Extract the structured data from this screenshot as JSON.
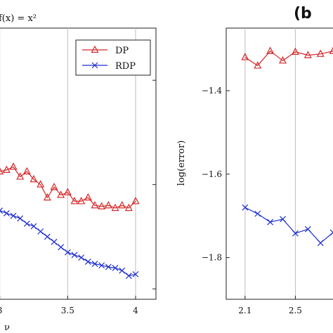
{
  "panels": {
    "left_title": "f(x) = x²",
    "right_tag": "(b"
  },
  "chart_data": [
    {
      "type": "line",
      "title": "f(x) = x²",
      "xlabel": "ν",
      "ylabel": "",
      "xlim": [
        2.95,
        4.15
      ],
      "ylim": [
        -1.82,
        -1.3
      ],
      "xticks": [
        3,
        3.5,
        4
      ],
      "xtick_labels": [
        "3",
        "3.5",
        "4"
      ],
      "yticks": [
        -1.4,
        -1.6,
        -1.8
      ],
      "grid": "vertical",
      "legend": "top-right",
      "series": [
        {
          "name": "DP",
          "color": "#d62728",
          "marker": "triangle",
          "x": [
            2.95,
            3.0,
            3.05,
            3.1,
            3.15,
            3.2,
            3.25,
            3.3,
            3.35,
            3.4,
            3.45,
            3.5,
            3.55,
            3.6,
            3.65,
            3.7,
            3.75,
            3.8,
            3.85,
            3.9,
            3.95,
            4.0
          ],
          "values": [
            -1.58,
            -1.575,
            -1.572,
            -1.566,
            -1.585,
            -1.575,
            -1.59,
            -1.6,
            -1.625,
            -1.605,
            -1.62,
            -1.615,
            -1.632,
            -1.632,
            -1.625,
            -1.64,
            -1.642,
            -1.64,
            -1.645,
            -1.64,
            -1.645,
            -1.632
          ]
        },
        {
          "name": "RDP",
          "color": "#1f2fd0",
          "marker": "cross",
          "x": [
            2.95,
            3.0,
            3.05,
            3.1,
            3.15,
            3.2,
            3.25,
            3.3,
            3.35,
            3.4,
            3.45,
            3.5,
            3.55,
            3.6,
            3.65,
            3.7,
            3.75,
            3.8,
            3.85,
            3.9,
            3.95,
            4.0
          ],
          "values": [
            -1.64,
            -1.65,
            -1.655,
            -1.66,
            -1.665,
            -1.675,
            -1.68,
            -1.69,
            -1.7,
            -1.71,
            -1.72,
            -1.73,
            -1.735,
            -1.74,
            -1.748,
            -1.752,
            -1.755,
            -1.758,
            -1.76,
            -1.765,
            -1.775,
            -1.772
          ]
        }
      ]
    },
    {
      "type": "line",
      "title": "",
      "xlabel": "",
      "ylabel": "log(error)",
      "xlim": [
        1.95,
        2.9
      ],
      "ylim": [
        -1.9,
        -1.25
      ],
      "xticks": [
        2.1,
        2.5
      ],
      "xtick_labels": [
        "2.1",
        "2.5"
      ],
      "yticks": [
        -1.4,
        -1.6,
        -1.8
      ],
      "ytick_labels": [
        "−1.4",
        "−1.6",
        "−1.8"
      ],
      "grid": "vertical",
      "series": [
        {
          "name": "DP",
          "color": "#d62728",
          "marker": "triangle",
          "x": [
            2.1,
            2.2,
            2.3,
            2.4,
            2.5,
            2.6,
            2.7,
            2.8
          ],
          "values": [
            -1.32,
            -1.34,
            -1.305,
            -1.328,
            -1.307,
            -1.315,
            -1.312,
            -1.305
          ]
        },
        {
          "name": "RDP",
          "color": "#1f2fd0",
          "marker": "cross",
          "x": [
            2.1,
            2.2,
            2.3,
            2.4,
            2.5,
            2.6,
            2.7,
            2.8
          ],
          "values": [
            -1.68,
            -1.695,
            -1.715,
            -1.708,
            -1.742,
            -1.732,
            -1.765,
            -1.74
          ]
        }
      ]
    }
  ]
}
